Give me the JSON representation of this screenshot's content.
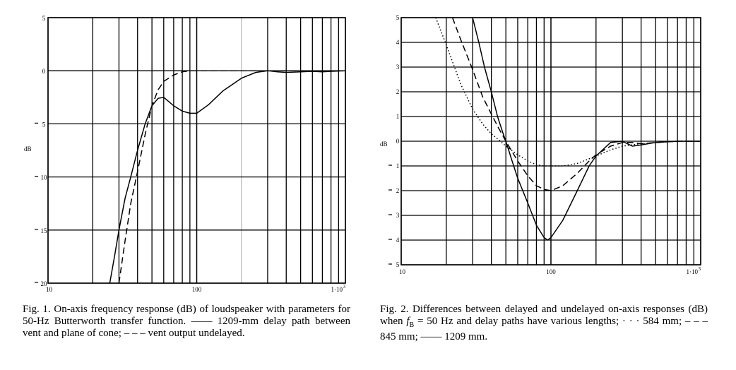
{
  "fig1": {
    "caption": {
      "label": "Fig. 1.",
      "text": "On-axis frequency response (dB) of loudspeaker with parameters for 50-Hz Butterworth transfer function. —— 1209-mm delay path between vent and plane of cone; – – – vent output undelayed."
    }
  },
  "fig2": {
    "caption": {
      "label": "Fig. 2.",
      "text_before": "Differences between delayed and undelayed on-axis responses (dB) when",
      "fb_symbol": "f",
      "fb_subscript": "B",
      "text_after": "= 50 Hz and delay paths have various lengths; · · · 584 mm; – – – 845 mm; —— 1209 mm."
    }
  },
  "chart_data": [
    {
      "type": "line",
      "ylabel": "dB",
      "xlabel": "",
      "x_scale": "log",
      "xlim": [
        10,
        1000
      ],
      "ylim": [
        -20,
        5
      ],
      "grid": true,
      "y_ticks": [
        {
          "v": 5,
          "t": "5"
        },
        {
          "v": 0,
          "t": "0"
        },
        {
          "v": -5,
          "t": "5"
        },
        {
          "v": -10,
          "t": "10"
        },
        {
          "v": -15,
          "t": "15"
        },
        {
          "v": -20,
          "t": "20"
        }
      ],
      "x_ticks": [
        {
          "v": 10,
          "t": "10"
        },
        {
          "v": 100,
          "t": "100"
        },
        {
          "v": 1000,
          "t": "1·10"
        }
      ],
      "series": [
        {
          "style": "solid",
          "points": [
            [
              26,
              -20
            ],
            [
              28,
              -17.5
            ],
            [
              30,
              -15
            ],
            [
              33,
              -12
            ],
            [
              36,
              -10
            ],
            [
              40,
              -7.5
            ],
            [
              45,
              -5
            ],
            [
              50,
              -3.3
            ],
            [
              55,
              -2.6
            ],
            [
              60,
              -2.5
            ],
            [
              70,
              -3.3
            ],
            [
              80,
              -3.8
            ],
            [
              90,
              -4
            ],
            [
              100,
              -4
            ],
            [
              120,
              -3.2
            ],
            [
              150,
              -1.9
            ],
            [
              200,
              -0.7
            ],
            [
              250,
              -0.15
            ],
            [
              300,
              0
            ],
            [
              350,
              -0.1
            ],
            [
              400,
              -0.15
            ],
            [
              500,
              -0.1
            ],
            [
              600,
              -0.05
            ],
            [
              700,
              -0.1
            ],
            [
              800,
              -0.05
            ],
            [
              1000,
              0
            ]
          ]
        },
        {
          "style": "dashed",
          "points": [
            [
              30,
              -20
            ],
            [
              33,
              -16
            ],
            [
              36,
              -12.5
            ],
            [
              40,
              -9.5
            ],
            [
              45,
              -6
            ],
            [
              50,
              -3.3
            ],
            [
              55,
              -1.8
            ],
            [
              60,
              -1
            ],
            [
              70,
              -0.4
            ],
            [
              80,
              -0.1
            ],
            [
              90,
              0
            ],
            [
              100,
              0
            ],
            [
              150,
              0
            ],
            [
              200,
              0
            ],
            [
              300,
              0
            ],
            [
              500,
              0
            ],
            [
              1000,
              0
            ]
          ]
        }
      ]
    },
    {
      "type": "line",
      "ylabel": "dB",
      "xlabel": "",
      "x_scale": "log",
      "xlim": [
        10,
        1000
      ],
      "ylim": [
        -5,
        5
      ],
      "grid": true,
      "y_ticks": [
        {
          "v": 5,
          "t": "5"
        },
        {
          "v": 4,
          "t": "4"
        },
        {
          "v": 3,
          "t": "3"
        },
        {
          "v": 2,
          "t": "2"
        },
        {
          "v": 1,
          "t": "1"
        },
        {
          "v": 0,
          "t": "0"
        },
        {
          "v": -1,
          "t": "1"
        },
        {
          "v": -2,
          "t": "2"
        },
        {
          "v": -3,
          "t": "3"
        },
        {
          "v": -4,
          "t": "4"
        },
        {
          "v": -5,
          "t": "5"
        }
      ],
      "x_ticks": [
        {
          "v": 10,
          "t": "10"
        },
        {
          "v": 100,
          "t": "100"
        },
        {
          "v": 1000,
          "t": "1·10"
        }
      ],
      "series": [
        {
          "name": "584 mm",
          "style": "dotted",
          "points": [
            [
              17,
              5
            ],
            [
              20,
              3.9
            ],
            [
              25,
              2.3
            ],
            [
              30,
              1.3
            ],
            [
              35,
              0.7
            ],
            [
              40,
              0.3
            ],
            [
              45,
              0.05
            ],
            [
              50,
              -0.2
            ],
            [
              60,
              -0.55
            ],
            [
              70,
              -0.8
            ],
            [
              80,
              -0.95
            ],
            [
              90,
              -1
            ],
            [
              100,
              -1
            ],
            [
              120,
              -1
            ],
            [
              150,
              -0.9
            ],
            [
              200,
              -0.6
            ],
            [
              250,
              -0.35
            ],
            [
              300,
              -0.2
            ],
            [
              400,
              -0.1
            ],
            [
              500,
              -0.05
            ],
            [
              700,
              0
            ],
            [
              1000,
              0
            ]
          ]
        },
        {
          "name": "845 mm",
          "style": "dashed",
          "points": [
            [
              22,
              5
            ],
            [
              25,
              4.1
            ],
            [
              30,
              2.9
            ],
            [
              35,
              1.8
            ],
            [
              40,
              1.1
            ],
            [
              45,
              0.5
            ],
            [
              50,
              0
            ],
            [
              60,
              -0.8
            ],
            [
              70,
              -1.4
            ],
            [
              80,
              -1.8
            ],
            [
              90,
              -1.95
            ],
            [
              100,
              -2
            ],
            [
              120,
              -1.8
            ],
            [
              150,
              -1.3
            ],
            [
              180,
              -0.8
            ],
            [
              200,
              -0.55
            ],
            [
              250,
              -0.2
            ],
            [
              300,
              -0.05
            ],
            [
              350,
              -0.05
            ],
            [
              400,
              -0.1
            ],
            [
              500,
              -0.05
            ],
            [
              700,
              0
            ],
            [
              1000,
              0
            ]
          ]
        },
        {
          "name": "1209 mm",
          "style": "solid",
          "points": [
            [
              30,
              5
            ],
            [
              33,
              4
            ],
            [
              36,
              3
            ],
            [
              40,
              2
            ],
            [
              44,
              1
            ],
            [
              48,
              0.3
            ],
            [
              50,
              0
            ],
            [
              55,
              -0.8
            ],
            [
              60,
              -1.5
            ],
            [
              70,
              -2.5
            ],
            [
              80,
              -3.4
            ],
            [
              90,
              -3.9
            ],
            [
              95,
              -4
            ],
            [
              100,
              -3.9
            ],
            [
              120,
              -3.2
            ],
            [
              150,
              -2
            ],
            [
              180,
              -1
            ],
            [
              200,
              -0.6
            ],
            [
              250,
              -0.05
            ],
            [
              300,
              0
            ],
            [
              350,
              -0.2
            ],
            [
              400,
              -0.15
            ],
            [
              500,
              -0.05
            ],
            [
              700,
              0
            ],
            [
              1000,
              0
            ]
          ]
        }
      ]
    }
  ]
}
